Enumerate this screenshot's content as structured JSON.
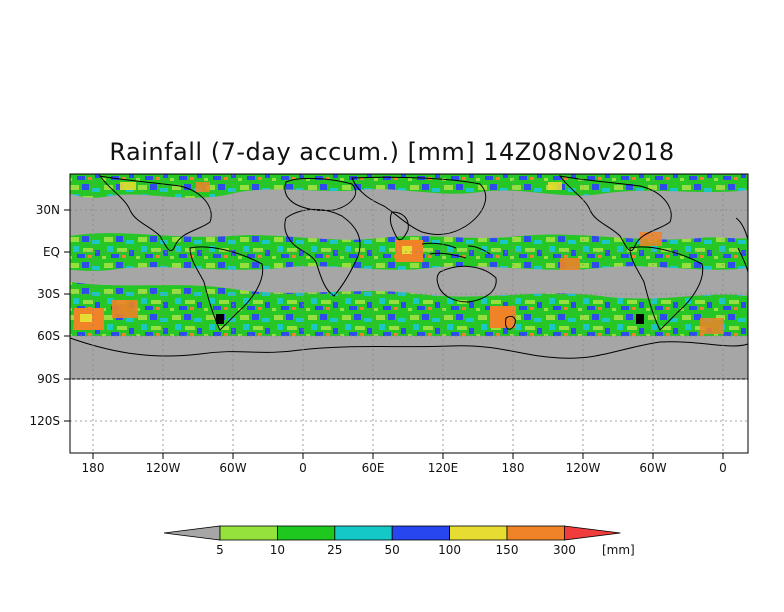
{
  "title": "Rainfall (7-day accum.) [mm] 14Z08Nov2018",
  "map": {
    "lat_labels": [
      "30N",
      "EQ",
      "30S",
      "60S",
      "90S",
      "120S"
    ],
    "lon_labels": [
      "180",
      "120W",
      "60W",
      "0",
      "60E",
      "120E",
      "180",
      "120W",
      "60W",
      "0"
    ],
    "no_data_color": "#a6a6a6",
    "grid": "dotted"
  },
  "colorbar": {
    "unit": "[mm]",
    "thresholds": [
      "5",
      "10",
      "25",
      "50",
      "100",
      "150",
      "300"
    ],
    "colors": [
      "#a6a6a6",
      "#96e23c",
      "#1ec81e",
      "#14c8c8",
      "#2846f0",
      "#e6dc32",
      "#f08228",
      "#f03c3c"
    ]
  }
}
